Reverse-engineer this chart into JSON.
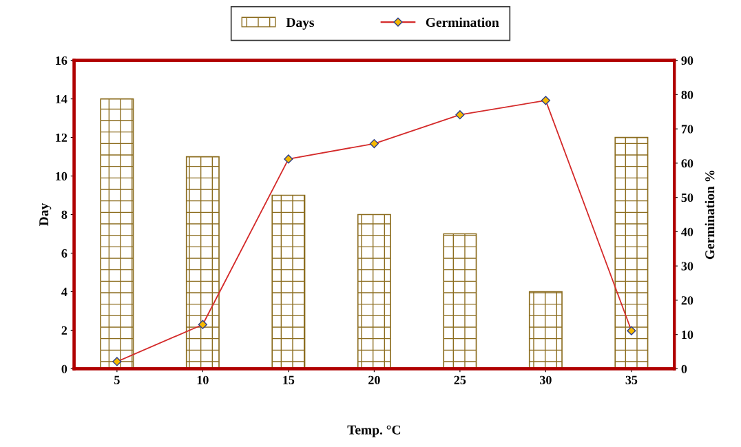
{
  "chart_data": {
    "type": "bar",
    "xlabel": "Temp. °C",
    "ylabel": "Day",
    "y2label": "Germination %",
    "categories": [
      "5",
      "10",
      "15",
      "20",
      "25",
      "30",
      "35"
    ],
    "series": [
      {
        "name": "Days",
        "color": "#8c6d1f",
        "values": [
          14,
          11,
          9,
          8,
          7,
          4,
          12
        ]
      },
      {
        "name": "Germination",
        "type": "line",
        "axis": "y2",
        "color": "#d42a2a",
        "marker": "diamond",
        "values": [
          2.1,
          12.9,
          61.2,
          65.7,
          74.1,
          78.3,
          11.1
        ]
      }
    ],
    "ylim": [
      0,
      16
    ],
    "yticks": [
      0,
      2,
      4,
      6,
      8,
      10,
      12,
      14,
      16
    ],
    "y2lim": [
      0,
      90
    ],
    "y2ticks": [
      0,
      10,
      20,
      30,
      40,
      50,
      60,
      70,
      80,
      90
    ],
    "legend": "top",
    "grid": false
  }
}
